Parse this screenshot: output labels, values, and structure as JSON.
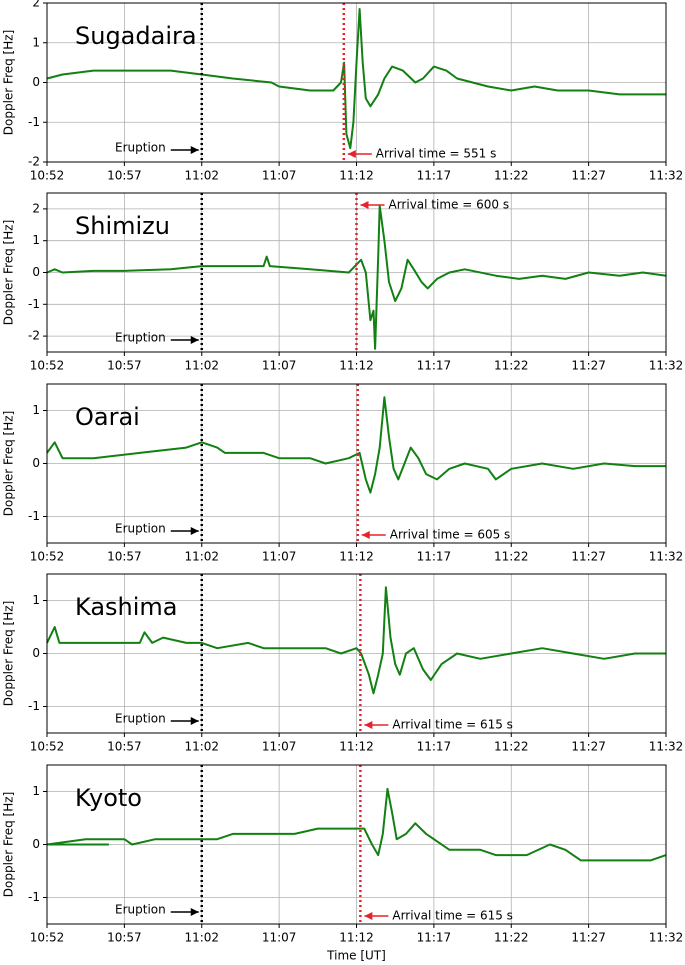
{
  "chart_data": [
    {
      "type": "line",
      "label": "Sugadaira",
      "ylabel": "Doppler Freq [Hz]",
      "color": "#138013",
      "grid": true,
      "xlim": [
        652,
        692
      ],
      "xticks": [
        {
          "value": 652,
          "label": "10:52"
        },
        {
          "value": 657,
          "label": "10:57"
        },
        {
          "value": 662,
          "label": "11:02"
        },
        {
          "value": 667,
          "label": "11:07"
        },
        {
          "value": 672,
          "label": "11:12"
        },
        {
          "value": 677,
          "label": "11:17"
        },
        {
          "value": 682,
          "label": "11:22"
        },
        {
          "value": 687,
          "label": "11:27"
        },
        {
          "value": 692,
          "label": "11:32"
        }
      ],
      "ylim": [
        -2,
        2
      ],
      "yticks": [
        -2,
        -1,
        0,
        1,
        2
      ],
      "eruption_x": 662,
      "eruption_text": "Eruption",
      "arrival_x": 671.18,
      "arrival_text": "Arrival time = 551 s",
      "x": [
        652,
        653,
        655,
        660,
        662,
        664,
        666.5,
        667,
        669,
        670.5,
        671.0,
        671.2,
        671.35,
        671.6,
        671.8,
        672.0,
        672.2,
        672.4,
        672.6,
        672.9,
        673.4,
        673.8,
        674.3,
        675,
        675.8,
        676.3,
        677,
        677.8,
        678.5,
        679.5,
        680.5,
        682,
        683.5,
        685,
        687,
        689,
        691,
        692
      ],
      "values": [
        0.1,
        0.2,
        0.3,
        0.3,
        0.2,
        0.1,
        0,
        -0.1,
        -0.2,
        -0.2,
        0,
        0.5,
        -1.3,
        -1.65,
        -1.0,
        0.5,
        1.85,
        0.5,
        -0.4,
        -0.6,
        -0.3,
        0.1,
        0.4,
        0.3,
        0,
        0.1,
        0.4,
        0.3,
        0.1,
        0,
        -0.1,
        -0.2,
        -0.1,
        -0.2,
        -0.2,
        -0.3,
        -0.3,
        -0.3
      ]
    },
    {
      "type": "line",
      "label": "Shimizu",
      "ylabel": "Doppler Freq [Hz]",
      "color": "#138013",
      "grid": true,
      "xlim": [
        652,
        692
      ],
      "xticks": [
        {
          "value": 652,
          "label": "10:52"
        },
        {
          "value": 657,
          "label": "10:57"
        },
        {
          "value": 662,
          "label": "11:02"
        },
        {
          "value": 667,
          "label": "11:07"
        },
        {
          "value": 672,
          "label": "11:12"
        },
        {
          "value": 677,
          "label": "11:17"
        },
        {
          "value": 682,
          "label": "11:22"
        },
        {
          "value": 687,
          "label": "11:27"
        },
        {
          "value": 692,
          "label": "11:32"
        }
      ],
      "ylim": [
        -2.5,
        2.5
      ],
      "yticks": [
        -2,
        -1,
        0,
        1,
        2
      ],
      "eruption_x": 662,
      "eruption_text": "Eruption",
      "arrival_x": 672.0,
      "arrival_text": "Arrival time = 600 s",
      "x": [
        652,
        652.5,
        653,
        655,
        657,
        660,
        662,
        666,
        666.2,
        666.4,
        669,
        671.5,
        672.3,
        672.6,
        672.9,
        673.1,
        673.2,
        673.4,
        673.5,
        673.8,
        674.1,
        674.5,
        674.9,
        675.3,
        675.7,
        676.2,
        676.6,
        677.2,
        678,
        679,
        681,
        682.5,
        684,
        685.5,
        687,
        689,
        690.5,
        692
      ],
      "values": [
        0,
        0.1,
        0,
        0.05,
        0.05,
        0.1,
        0.2,
        0.2,
        0.5,
        0.2,
        0.1,
        0,
        0.4,
        0,
        -1.5,
        -1.2,
        -2.4,
        0.5,
        2.1,
        1.0,
        -0.3,
        -0.9,
        -0.5,
        0.4,
        0.1,
        -0.3,
        -0.5,
        -0.2,
        0,
        0.1,
        -0.1,
        -0.2,
        -0.1,
        -0.2,
        0,
        -0.1,
        0,
        -0.1
      ]
    },
    {
      "type": "line",
      "label": "Oarai",
      "ylabel": "Doppler Freq [Hz]",
      "color": "#138013",
      "grid": true,
      "xlim": [
        652,
        692
      ],
      "xticks": [
        {
          "value": 652,
          "label": "10:52"
        },
        {
          "value": 657,
          "label": "10:57"
        },
        {
          "value": 662,
          "label": "11:02"
        },
        {
          "value": 667,
          "label": "11:07"
        },
        {
          "value": 672,
          "label": "11:12"
        },
        {
          "value": 677,
          "label": "11:17"
        },
        {
          "value": 682,
          "label": "11:22"
        },
        {
          "value": 687,
          "label": "11:27"
        },
        {
          "value": 692,
          "label": "11:32"
        }
      ],
      "ylim": [
        -1.5,
        1.5
      ],
      "yticks": [
        -1,
        0,
        1
      ],
      "eruption_x": 662,
      "eruption_text": "Eruption",
      "arrival_x": 672.08,
      "arrival_text": "Arrival time = 605 s",
      "x": [
        652,
        652.5,
        653,
        655,
        658,
        661,
        662,
        663,
        663.5,
        666,
        667,
        669,
        670,
        671.5,
        672.2,
        672.6,
        672.9,
        673.2,
        673.5,
        673.8,
        674.1,
        674.4,
        674.7,
        675.1,
        675.5,
        676,
        676.5,
        677.2,
        678,
        679,
        680.5,
        681,
        682,
        684,
        686,
        688,
        690,
        692
      ],
      "values": [
        0.2,
        0.4,
        0.1,
        0.1,
        0.2,
        0.3,
        0.4,
        0.3,
        0.2,
        0.2,
        0.1,
        0.1,
        0,
        0.1,
        0.2,
        -0.3,
        -0.55,
        -0.2,
        0.3,
        1.25,
        0.5,
        -0.1,
        -0.3,
        0,
        0.3,
        0.1,
        -0.2,
        -0.3,
        -0.1,
        0,
        -0.1,
        -0.3,
        -0.1,
        0,
        -0.1,
        0,
        -0.05,
        -0.05
      ]
    },
    {
      "type": "line",
      "label": "Kashima",
      "ylabel": "Doppler Freq [Hz]",
      "color": "#138013",
      "grid": true,
      "xlim": [
        652,
        692
      ],
      "xticks": [
        {
          "value": 652,
          "label": "10:52"
        },
        {
          "value": 657,
          "label": "10:57"
        },
        {
          "value": 662,
          "label": "11:02"
        },
        {
          "value": 667,
          "label": "11:07"
        },
        {
          "value": 672,
          "label": "11:12"
        },
        {
          "value": 677,
          "label": "11:17"
        },
        {
          "value": 682,
          "label": "11:22"
        },
        {
          "value": 687,
          "label": "11:27"
        },
        {
          "value": 692,
          "label": "11:32"
        }
      ],
      "ylim": [
        -1.5,
        1.5
      ],
      "yticks": [
        -1,
        0,
        1
      ],
      "eruption_x": 662,
      "eruption_text": "Eruption",
      "arrival_x": 672.25,
      "arrival_text": "Arrival time = 615 s",
      "x": [
        652,
        652.5,
        652.8,
        658,
        658.3,
        658.8,
        659.5,
        661,
        662,
        663,
        665,
        666,
        670,
        671,
        672,
        672.3,
        672.8,
        673.1,
        673.4,
        673.7,
        673.9,
        674.2,
        674.5,
        674.8,
        675.2,
        675.7,
        676.3,
        676.8,
        677.5,
        678.5,
        680,
        682,
        684,
        686,
        688,
        690,
        692
      ],
      "values": [
        0.2,
        0.5,
        0.2,
        0.2,
        0.4,
        0.2,
        0.3,
        0.2,
        0.2,
        0.1,
        0.2,
        0.1,
        0.1,
        0,
        0.1,
        0,
        -0.4,
        -0.75,
        -0.4,
        0,
        1.25,
        0.3,
        -0.2,
        -0.4,
        0,
        0.1,
        -0.3,
        -0.5,
        -0.2,
        0,
        -0.1,
        0,
        0.1,
        0,
        -0.1,
        0,
        0
      ]
    },
    {
      "type": "line",
      "label": "Kyoto",
      "ylabel": "Doppler Freq [Hz]",
      "xlabel": "Time [UT]",
      "color": "#138013",
      "grid": true,
      "xlim": [
        652,
        692
      ],
      "xticks": [
        {
          "value": 652,
          "label": "10:52"
        },
        {
          "value": 657,
          "label": "10:57"
        },
        {
          "value": 662,
          "label": "11:02"
        },
        {
          "value": 667,
          "label": "11:07"
        },
        {
          "value": 672,
          "label": "11:12"
        },
        {
          "value": 677,
          "label": "11:17"
        },
        {
          "value": 682,
          "label": "11:22"
        },
        {
          "value": 687,
          "label": "11:27"
        },
        {
          "value": 692,
          "label": "11:32"
        }
      ],
      "ylim": [
        -1.5,
        1.5
      ],
      "yticks": [
        -1,
        0,
        1
      ],
      "eruption_x": 662,
      "eruption_text": "Eruption",
      "arrival_x": 672.25,
      "arrival_text": "Arrival time = 615 s",
      "x": [
        652,
        656,
        656,
        652,
        654.5,
        657,
        657.5,
        659,
        663,
        664,
        668,
        669.5,
        672.5,
        673,
        673.4,
        673.7,
        674.0,
        674.3,
        674.6,
        675.2,
        675.8,
        676.5,
        677,
        678,
        680,
        681,
        683,
        684.5,
        685.5,
        686.5,
        691,
        692
      ],
      "values": [
        0,
        0,
        null,
        0,
        0.1,
        0.1,
        0,
        0.1,
        0.1,
        0.2,
        0.2,
        0.3,
        0.3,
        0,
        -0.2,
        0.2,
        1.05,
        0.6,
        0.1,
        0.2,
        0.4,
        0.2,
        0.1,
        -0.1,
        -0.1,
        -0.2,
        -0.2,
        0,
        -0.1,
        -0.3,
        -0.3,
        -0.2
      ]
    }
  ]
}
